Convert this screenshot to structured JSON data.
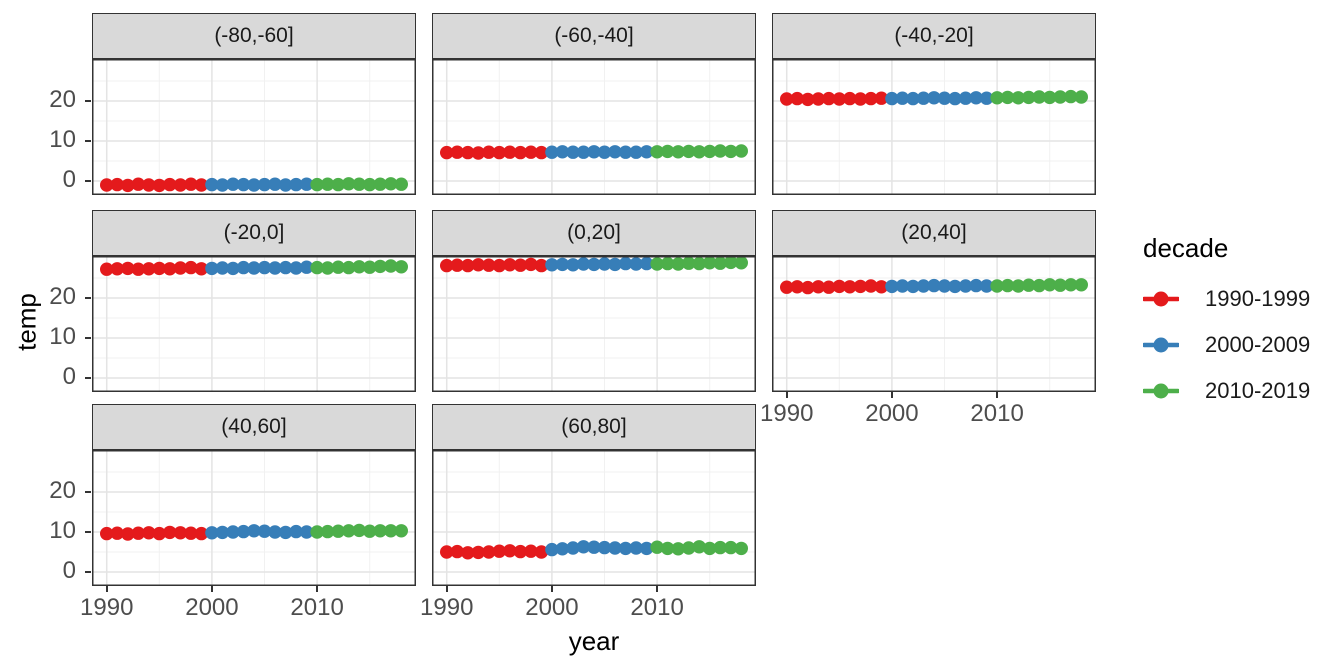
{
  "chart_data": {
    "type": "scatter",
    "title": "",
    "xlabel": "year",
    "ylabel": "temp",
    "legend_title": "decade",
    "legend_position": "right",
    "grid": true,
    "x": [
      1990,
      1991,
      1992,
      1993,
      1994,
      1995,
      1996,
      1997,
      1998,
      1999,
      2000,
      2001,
      2002,
      2003,
      2004,
      2005,
      2006,
      2007,
      2008,
      2009,
      2010,
      2011,
      2012,
      2013,
      2014,
      2015,
      2016,
      2017,
      2018
    ],
    "x_ticks": [
      1990,
      2000,
      2010
    ],
    "x_minor_ticks": [
      1995,
      2005,
      2015
    ],
    "y_ticks": [
      0,
      10,
      20
    ],
    "y_minor_ticks": [
      5,
      15,
      25
    ],
    "xlim": [
      1988.6,
      2019.4
    ],
    "ylim": [
      -3.5,
      30.5
    ],
    "legend_entries": [
      {
        "label": "1990-1999",
        "color": "#E41A1C",
        "from": 1990,
        "to": 1999
      },
      {
        "label": "2000-2009",
        "color": "#377EB8",
        "from": 2000,
        "to": 2009
      },
      {
        "label": "2010-2019",
        "color": "#4DAF4A",
        "from": 2010,
        "to": 2019
      }
    ],
    "facets": [
      {
        "label": "(-80,-60]",
        "values": [
          -1.0,
          -0.9,
          -1.1,
          -0.8,
          -1.0,
          -1.1,
          -0.9,
          -1.0,
          -0.8,
          -1.0,
          -0.9,
          -1.0,
          -0.8,
          -0.9,
          -1.0,
          -0.9,
          -0.8,
          -1.0,
          -0.9,
          -0.8,
          -0.9,
          -0.8,
          -0.9,
          -0.7,
          -0.8,
          -0.9,
          -0.8,
          -0.7,
          -0.8
        ]
      },
      {
        "label": "(-60,-40]",
        "values": [
          7.1,
          7.2,
          7.1,
          7.0,
          7.2,
          7.1,
          7.2,
          7.1,
          7.2,
          7.1,
          7.2,
          7.3,
          7.2,
          7.2,
          7.3,
          7.2,
          7.3,
          7.2,
          7.2,
          7.3,
          7.3,
          7.4,
          7.3,
          7.4,
          7.3,
          7.4,
          7.5,
          7.4,
          7.5
        ]
      },
      {
        "label": "(-40,-20]",
        "values": [
          20.5,
          20.6,
          20.4,
          20.5,
          20.6,
          20.5,
          20.6,
          20.5,
          20.6,
          20.7,
          20.6,
          20.7,
          20.6,
          20.7,
          20.8,
          20.7,
          20.6,
          20.7,
          20.8,
          20.7,
          20.8,
          20.9,
          20.8,
          20.9,
          21.0,
          20.9,
          21.0,
          21.1,
          21.0
        ]
      },
      {
        "label": "(-20,0]",
        "values": [
          27.2,
          27.3,
          27.4,
          27.2,
          27.3,
          27.4,
          27.3,
          27.5,
          27.6,
          27.3,
          27.4,
          27.5,
          27.4,
          27.6,
          27.5,
          27.6,
          27.5,
          27.6,
          27.5,
          27.7,
          27.6,
          27.5,
          27.7,
          27.6,
          27.8,
          27.7,
          27.9,
          28.0,
          27.8
        ]
      },
      {
        "label": "(0,20]",
        "values": [
          28.1,
          28.2,
          28.1,
          28.3,
          28.2,
          28.1,
          28.3,
          28.2,
          28.4,
          28.1,
          28.3,
          28.4,
          28.3,
          28.5,
          28.4,
          28.5,
          28.4,
          28.6,
          28.5,
          28.6,
          28.5,
          28.6,
          28.5,
          28.7,
          28.6,
          28.8,
          28.7,
          28.9,
          28.8
        ]
      },
      {
        "label": "(20,40]",
        "values": [
          22.7,
          22.8,
          22.6,
          22.8,
          22.7,
          22.9,
          22.8,
          22.9,
          23.0,
          22.8,
          22.9,
          23.0,
          22.9,
          23.0,
          23.1,
          23.0,
          22.9,
          23.0,
          23.1,
          23.0,
          23.0,
          23.1,
          23.0,
          23.2,
          23.1,
          23.3,
          23.2,
          23.3,
          23.3
        ]
      },
      {
        "label": "(40,60]",
        "values": [
          9.6,
          9.7,
          9.5,
          9.7,
          9.8,
          9.6,
          9.9,
          9.8,
          9.7,
          9.6,
          9.8,
          9.9,
          10.0,
          10.1,
          10.3,
          10.2,
          10.0,
          9.9,
          10.1,
          10.0,
          10.0,
          10.1,
          10.2,
          10.3,
          10.4,
          10.2,
          10.3,
          10.3,
          10.3
        ]
      },
      {
        "label": "(60,80]",
        "values": [
          5.0,
          5.1,
          4.8,
          4.9,
          5.0,
          5.2,
          5.3,
          5.1,
          5.2,
          5.0,
          5.6,
          5.8,
          6.0,
          6.3,
          6.2,
          6.1,
          6.0,
          5.9,
          6.0,
          5.9,
          6.2,
          5.9,
          5.8,
          6.0,
          6.3,
          5.9,
          6.1,
          6.1,
          5.9
        ]
      }
    ]
  }
}
